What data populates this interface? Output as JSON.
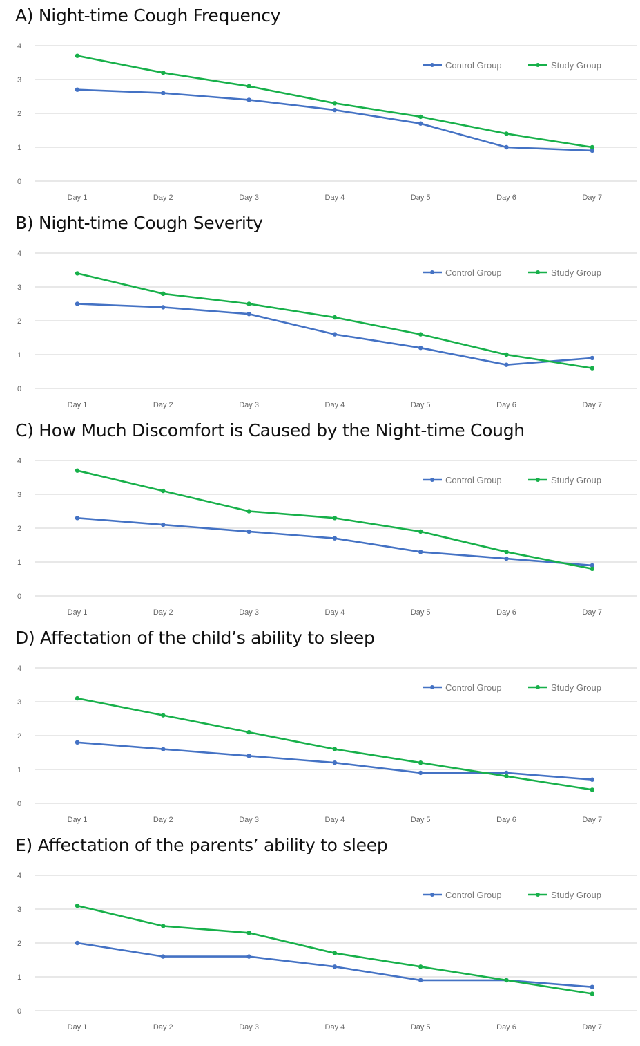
{
  "colors": {
    "control": "#4472C4",
    "study": "#17B04A",
    "grid": "#D9D9D9"
  },
  "chart_data": [
    {
      "type": "line",
      "title": "A) Night-time Cough Frequency",
      "categories": [
        "Day 1",
        "Day 2",
        "Day 3",
        "Day 4",
        "Day 5",
        "Day 6",
        "Day 7"
      ],
      "yticks": [
        "0",
        "1",
        "2",
        "3",
        "4"
      ],
      "ylim": [
        0,
        4
      ],
      "grid": true,
      "legend": "top-right",
      "series": [
        {
          "name": "Control Group",
          "values": [
            2.7,
            2.6,
            2.4,
            2.1,
            1.7,
            1.0,
            0.9
          ]
        },
        {
          "name": "Study Group",
          "values": [
            3.7,
            3.2,
            2.8,
            2.3,
            1.9,
            1.4,
            1.0
          ]
        }
      ]
    },
    {
      "type": "line",
      "title": "B) Night-time Cough Severity",
      "categories": [
        "Day 1",
        "Day 2",
        "Day 3",
        "Day 4",
        "Day 5",
        "Day 6",
        "Day 7"
      ],
      "yticks": [
        "0",
        "1",
        "2",
        "3",
        "4"
      ],
      "ylim": [
        0,
        4
      ],
      "grid": true,
      "legend": "top-right",
      "series": [
        {
          "name": "Control Group",
          "values": [
            2.5,
            2.4,
            2.2,
            1.6,
            1.2,
            0.7,
            0.9
          ]
        },
        {
          "name": "Study Group",
          "values": [
            3.4,
            2.8,
            2.5,
            2.1,
            1.6,
            1.0,
            0.6
          ]
        }
      ]
    },
    {
      "type": "line",
      "title": "C) How Much Discomfort is Caused by the Night-time Cough",
      "categories": [
        "Day 1",
        "Day 2",
        "Day 3",
        "Day 4",
        "Day 5",
        "Day 6",
        "Day 7"
      ],
      "yticks": [
        "0",
        "1",
        "2",
        "3",
        "4"
      ],
      "ylim": [
        0,
        4
      ],
      "grid": true,
      "legend": "top-right",
      "series": [
        {
          "name": "Control Group",
          "values": [
            2.3,
            2.1,
            1.9,
            1.7,
            1.3,
            1.1,
            0.9
          ]
        },
        {
          "name": "Study Group",
          "values": [
            3.7,
            3.1,
            2.5,
            2.3,
            1.9,
            1.3,
            0.8
          ]
        }
      ]
    },
    {
      "type": "line",
      "title": "D) Affectation of the child’s ability to sleep",
      "categories": [
        "Day 1",
        "Day 2",
        "Day 3",
        "Day 4",
        "Day 5",
        "Day 6",
        "Day 7"
      ],
      "yticks": [
        "0",
        "1",
        "2",
        "3",
        "4"
      ],
      "ylim": [
        0,
        4
      ],
      "grid": true,
      "legend": "top-right",
      "series": [
        {
          "name": "Control Group",
          "values": [
            1.8,
            1.6,
            1.4,
            1.2,
            0.9,
            0.9,
            0.7
          ]
        },
        {
          "name": "Study Group",
          "values": [
            3.1,
            2.6,
            2.1,
            1.6,
            1.2,
            0.8,
            0.4
          ]
        }
      ]
    },
    {
      "type": "line",
      "title": "E) Affectation of the parents’ ability to sleep",
      "categories": [
        "Day 1",
        "Day 2",
        "Day 3",
        "Day 4",
        "Day 5",
        "Day 6",
        "Day 7"
      ],
      "yticks": [
        "0",
        "1",
        "2",
        "3",
        "4"
      ],
      "ylim": [
        0,
        4
      ],
      "grid": true,
      "legend": "top-right",
      "series": [
        {
          "name": "Control Group",
          "values": [
            2.0,
            1.6,
            1.6,
            1.3,
            0.9,
            0.9,
            0.7
          ]
        },
        {
          "name": "Study Group",
          "values": [
            3.1,
            2.5,
            2.3,
            1.7,
            1.3,
            0.9,
            0.5
          ]
        }
      ]
    }
  ]
}
